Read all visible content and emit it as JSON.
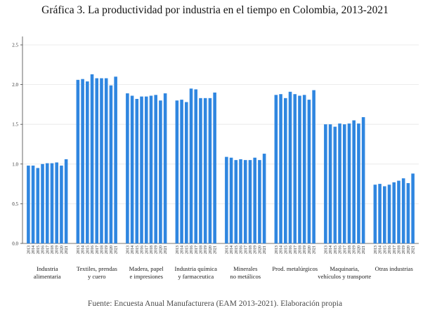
{
  "chart_data": {
    "type": "bar",
    "title": "Gráfica 3. La productividad por industria en el tiempo en Colombia, 2013-2021",
    "source": "Fuente: Encuesta Anual Manufacturera (EAM 2013-2021). Elaboración propia",
    "ylim": [
      0,
      2.5
    ],
    "yticks": [
      "0.0",
      "0.5",
      "1.0",
      "1.5",
      "2.0",
      "2.5"
    ],
    "grid": true,
    "bar_color": "#2f86e0",
    "years": [
      "2013",
      "2014",
      "2015",
      "2016",
      "2017",
      "2018",
      "2019",
      "2020",
      "2021"
    ],
    "groups": [
      {
        "label_lines": [
          "Industria",
          "alimentaria"
        ],
        "values": [
          0.98,
          0.98,
          0.95,
          1.0,
          1.01,
          1.01,
          1.02,
          0.98,
          1.06
        ]
      },
      {
        "label_lines": [
          "Textiles, prendas",
          "y cuero"
        ],
        "values": [
          2.06,
          2.07,
          2.04,
          2.13,
          2.08,
          2.08,
          2.08,
          1.99,
          2.1
        ]
      },
      {
        "label_lines": [
          "Madera, papel",
          "e impresiones"
        ],
        "values": [
          1.89,
          1.86,
          1.82,
          1.85,
          1.85,
          1.86,
          1.87,
          1.8,
          1.89
        ]
      },
      {
        "label_lines": [
          "Industria química",
          "y farmaceutica"
        ],
        "values": [
          1.8,
          1.81,
          1.78,
          1.95,
          1.94,
          1.83,
          1.83,
          1.83,
          1.9
        ]
      },
      {
        "label_lines": [
          "Minerales",
          "no metálicos"
        ],
        "values": [
          1.09,
          1.08,
          1.05,
          1.06,
          1.05,
          1.05,
          1.08,
          1.05,
          1.13
        ]
      },
      {
        "label_lines": [
          "Prod. metalúrgicos"
        ],
        "values": [
          1.87,
          1.88,
          1.83,
          1.91,
          1.88,
          1.86,
          1.87,
          1.81,
          1.93
        ]
      },
      {
        "label_lines": [
          "Maquinaria,",
          "vehículos y transporte"
        ],
        "values": [
          1.5,
          1.5,
          1.47,
          1.51,
          1.5,
          1.51,
          1.55,
          1.51,
          1.59
        ]
      },
      {
        "label_lines": [
          "Otras industrias"
        ],
        "values": [
          0.74,
          0.75,
          0.72,
          0.74,
          0.77,
          0.79,
          0.82,
          0.76,
          0.88
        ]
      }
    ]
  }
}
